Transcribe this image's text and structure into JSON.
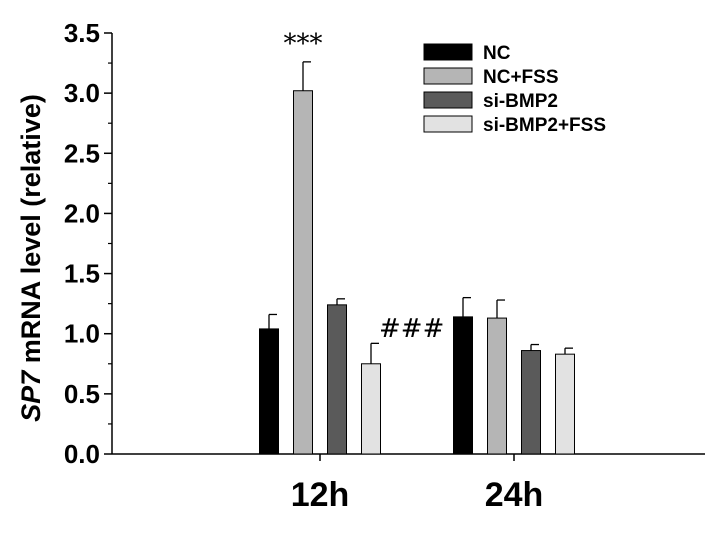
{
  "chart_data": {
    "type": "bar",
    "categories": [
      "12h",
      "24h"
    ],
    "series": [
      {
        "name": "NC",
        "color": "#000000",
        "values": [
          1.04,
          1.14
        ],
        "errors": [
          0.12,
          0.16
        ]
      },
      {
        "name": "NC+FSS",
        "color": "#b5b5b5",
        "values": [
          3.02,
          1.13
        ],
        "errors": [
          0.24,
          0.15
        ]
      },
      {
        "name": "si-BMP2",
        "color": "#5a5a5a",
        "values": [
          1.24,
          0.86
        ],
        "errors": [
          0.05,
          0.05
        ]
      },
      {
        "name": "si-BMP2+FSS",
        "color": "#e2e2e2",
        "values": [
          0.75,
          0.83
        ],
        "errors": [
          0.17,
          0.05
        ]
      }
    ],
    "ylabel_italic": "SP7",
    "ylabel_rest": " mRNA level (relative)",
    "ylim": [
      0,
      3.5
    ],
    "yticks": [
      "0.0",
      "0.5",
      "1.0",
      "1.5",
      "2.0",
      "2.5",
      "3.0",
      "3.5"
    ],
    "annotations": [
      {
        "text": "***",
        "category": 0,
        "series": 1
      },
      {
        "text": "###",
        "category": 0,
        "series": 3
      }
    ],
    "legend_position": "top-right",
    "grid": false
  }
}
